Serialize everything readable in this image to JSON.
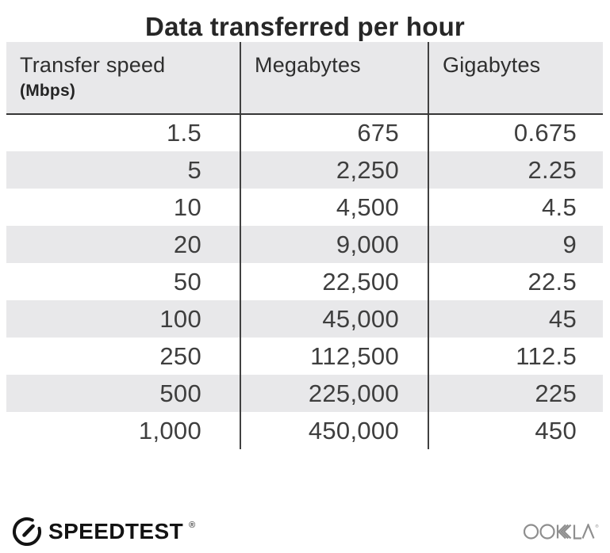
{
  "title": "Data transferred per hour",
  "table": {
    "columns": [
      {
        "label": "Transfer speed",
        "sublabel": "(Mbps)"
      },
      {
        "label": "Megabytes"
      },
      {
        "label": "Gigabytes"
      }
    ],
    "rows": [
      [
        "1.5",
        "675",
        "0.675"
      ],
      [
        "5",
        "2,250",
        "2.25"
      ],
      [
        "10",
        "4,500",
        "4.5"
      ],
      [
        "20",
        "9,000",
        "9"
      ],
      [
        "50",
        "22,500",
        "22.5"
      ],
      [
        "100",
        "45,000",
        "45"
      ],
      [
        "250",
        "112,500",
        "112.5"
      ],
      [
        "500",
        "225,000",
        "225"
      ],
      [
        "1,000",
        "450,000",
        "450"
      ]
    ]
  },
  "footer": {
    "speedtest_label": "SPEEDTEST",
    "speedtest_trademark": "®",
    "ookla_label": "OOKLA",
    "ookla_trademark": "®"
  },
  "colors": {
    "stripe_gray": "#e8e8ea",
    "divider": "#414141",
    "title_text": "#272727",
    "body_text": "#3e3e3e",
    "speedtest_black": "#131313",
    "ookla_gray": "#8e8e8e"
  },
  "chart_data": {
    "type": "table",
    "title": "Data transferred per hour",
    "columns": [
      "Transfer speed (Mbps)",
      "Megabytes",
      "Gigabytes"
    ],
    "rows": [
      [
        1.5,
        675,
        0.675
      ],
      [
        5,
        2250,
        2.25
      ],
      [
        10,
        4500,
        4.5
      ],
      [
        20,
        9000,
        9
      ],
      [
        50,
        22500,
        22.5
      ],
      [
        100,
        45000,
        45
      ],
      [
        250,
        112500,
        112.5
      ],
      [
        500,
        225000,
        225
      ],
      [
        1000,
        450000,
        450
      ]
    ]
  }
}
